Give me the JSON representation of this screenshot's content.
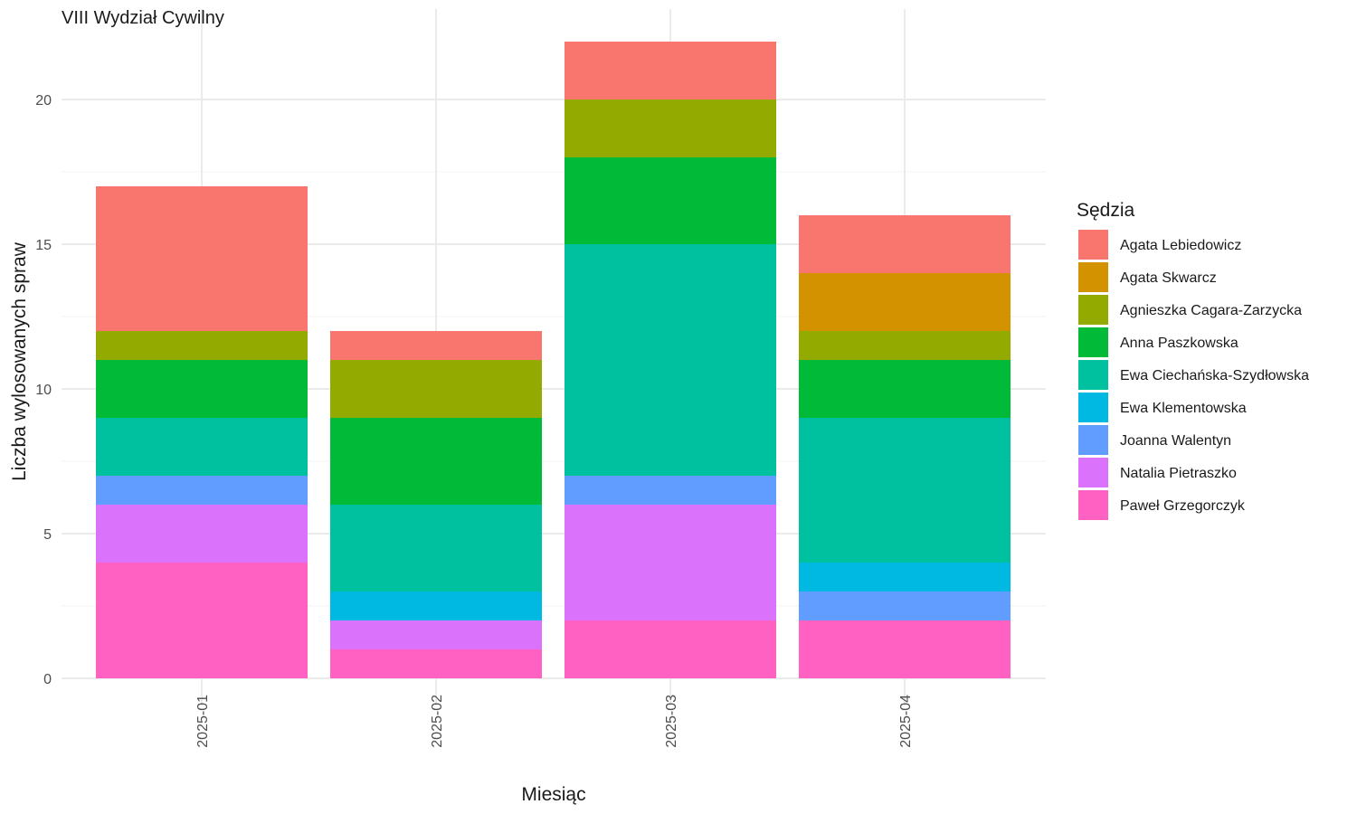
{
  "chart_data": {
    "type": "bar",
    "stacked": true,
    "title": "VIII Wydział Cywilny",
    "xlabel": "Miesiąc",
    "ylabel": "Liczba wylosowanych spraw",
    "legend_title": "Sędzia",
    "legend_position": "right",
    "grid": true,
    "ylim": [
      0,
      22
    ],
    "yticks": [
      "0",
      "5",
      "10",
      "15",
      "20"
    ],
    "categories": [
      "2025-01",
      "2025-02",
      "2025-03",
      "2025-04"
    ],
    "series": [
      {
        "name": "Paweł Grzegorczyk",
        "color": "#FF61C3",
        "values": [
          4,
          1,
          2,
          2
        ]
      },
      {
        "name": "Natalia Pietraszko",
        "color": "#DB72FB",
        "values": [
          2,
          1,
          4,
          0
        ]
      },
      {
        "name": "Joanna Walentyn",
        "color": "#619CFF",
        "values": [
          1,
          0,
          1,
          1
        ]
      },
      {
        "name": "Ewa Klementowska",
        "color": "#00B9E3",
        "values": [
          0,
          1,
          0,
          1
        ]
      },
      {
        "name": "Ewa Ciechańska-Szydłowska",
        "color": "#00C19F",
        "values": [
          2,
          3,
          8,
          5
        ]
      },
      {
        "name": "Anna Paszkowska",
        "color": "#00BA38",
        "values": [
          2,
          3,
          3,
          2
        ]
      },
      {
        "name": "Agnieszka Cagara-Zarzycka",
        "color": "#93AA00",
        "values": [
          1,
          2,
          2,
          1
        ]
      },
      {
        "name": "Agata Skwarcz",
        "color": "#D39200",
        "values": [
          0,
          0,
          0,
          2
        ]
      },
      {
        "name": "Agata Lebiedowicz",
        "color": "#F8766D",
        "values": [
          5,
          1,
          2,
          2
        ]
      }
    ],
    "legend_order": [
      "Agata Lebiedowicz",
      "Agata Skwarcz",
      "Agnieszka Cagara-Zarzycka",
      "Anna Paszkowska",
      "Ewa Ciechańska-Szydłowska",
      "Ewa Klementowska",
      "Joanna Walentyn",
      "Natalia Pietraszko",
      "Paweł Grzegorczyk"
    ]
  }
}
